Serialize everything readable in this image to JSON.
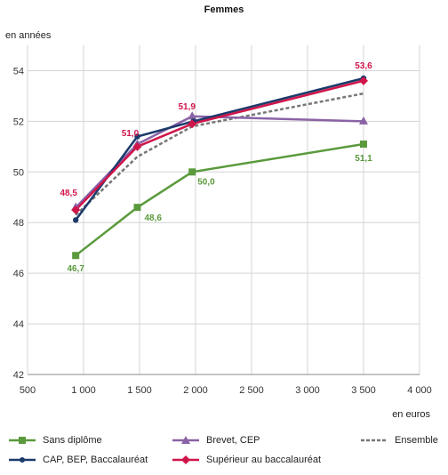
{
  "chart_data": {
    "type": "line",
    "title": "Femmes",
    "ylabel": "en années",
    "xlabel": "en euros",
    "xlim": [
      500,
      4000
    ],
    "ylim": [
      42,
      55
    ],
    "x_ticks": [
      500,
      1000,
      1500,
      2000,
      2500,
      3000,
      3500,
      4000
    ],
    "x_tick_labels": [
      "500",
      "1 000",
      "1 500",
      "2 000",
      "2 500",
      "3 000",
      "3 500",
      "4 000"
    ],
    "y_ticks": [
      42,
      44,
      46,
      48,
      50,
      52,
      54
    ],
    "y_tick_labels": [
      "42",
      "44",
      "46",
      "48",
      "50",
      "52",
      "54"
    ],
    "grid": true,
    "legend_position": "bottom",
    "series": [
      {
        "name": "Sans diplôme",
        "color": "#5a9a3c",
        "marker": "square",
        "style": "solid",
        "points": [
          [
            930,
            46.7
          ],
          [
            1480,
            48.6
          ],
          [
            1970,
            50.0
          ],
          [
            3500,
            51.1
          ]
        ],
        "labels": [
          "46,7",
          "48,6",
          "50,0",
          "51,1"
        ]
      },
      {
        "name": "CAP, BEP, Baccalauréat",
        "color": "#1b3a6b",
        "marker": "circle",
        "style": "solid",
        "points": [
          [
            930,
            48.1
          ],
          [
            1480,
            51.4
          ],
          [
            1980,
            52.0
          ],
          [
            3500,
            53.7
          ]
        ]
      },
      {
        "name": "Brevet, CEP",
        "color": "#8a63a6",
        "marker": "triangle",
        "style": "solid",
        "points": [
          [
            930,
            48.6
          ],
          [
            1480,
            51.1
          ],
          [
            1970,
            52.2
          ],
          [
            3500,
            52.0
          ]
        ]
      },
      {
        "name": "Supérieur au baccalauréat",
        "color": "#d0154a",
        "marker": "diamond",
        "style": "solid",
        "points": [
          [
            930,
            48.5
          ],
          [
            1480,
            51.0
          ],
          [
            1970,
            51.9
          ],
          [
            3500,
            53.6
          ]
        ],
        "labels": [
          "48,5",
          "51,0",
          "51,9",
          "53,6"
        ]
      },
      {
        "name": "Ensemble",
        "color": "#777777",
        "marker": "none",
        "style": "dashed",
        "points": [
          [
            930,
            48.3
          ],
          [
            1480,
            50.6
          ],
          [
            1970,
            51.8
          ],
          [
            3500,
            53.1
          ]
        ]
      }
    ]
  }
}
